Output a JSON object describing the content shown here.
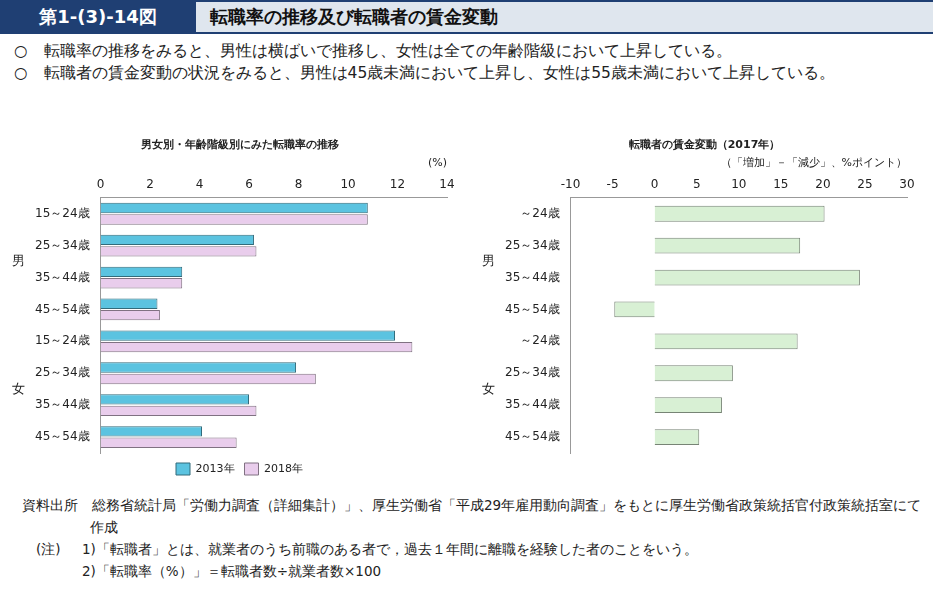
{
  "header": {
    "figure_no": "第1-(3)-14図",
    "title": "転職率の推移及び転職者の賃金変動"
  },
  "bullets": [
    "○　転職率の推移をみると、男性は横ばいで推移し、女性は全ての年齢階級において上昇している。",
    "○　転職者の賃金変動の状況をみると、男性は45歳未満において上昇し、女性は55歳未満において上昇している。"
  ],
  "chart_data": [
    {
      "type": "bar",
      "orientation": "horizontal",
      "title": "男女別・年齢階級別にみた転職率の推移",
      "x_label": "(%)",
      "categories": [
        "15～24歳",
        "25～34歳",
        "35～44歳",
        "45～54歳",
        "15～24歳",
        "25～34歳",
        "35～44歳",
        "45～54歳"
      ],
      "groups": [
        {
          "label": "男",
          "size": 4
        },
        {
          "label": "女",
          "size": 4
        }
      ],
      "series": [
        {
          "name": "2013年",
          "color": "#5bc3e0",
          "values": [
            10.8,
            6.2,
            3.3,
            2.3,
            11.9,
            7.9,
            6.0,
            4.1
          ]
        },
        {
          "name": "2018年",
          "color": "#e9cdec",
          "values": [
            10.8,
            6.3,
            3.3,
            2.4,
            12.6,
            8.7,
            6.3,
            5.5
          ]
        }
      ],
      "xlim": [
        0,
        14
      ],
      "xticks": [
        0,
        2,
        4,
        6,
        8,
        10,
        12,
        14
      ],
      "grid": false,
      "legend": "bottom"
    },
    {
      "type": "bar",
      "orientation": "horizontal",
      "title": "転職者の賃金変動（2017年）",
      "x_label": "（「増加」－「減少」、%ポイント）",
      "categories": [
        "～24歳",
        "25～34歳",
        "35～44歳",
        "45～54歳",
        "～24歳",
        "25～34歳",
        "35～44歳",
        "45～54歳"
      ],
      "groups": [
        {
          "label": "男",
          "size": 4
        },
        {
          "label": "女",
          "size": 4
        }
      ],
      "values": [
        20.2,
        17.3,
        24.4,
        -4.8,
        17.0,
        9.3,
        8.0,
        5.3
      ],
      "color": "#d8f0d4",
      "xlim": [
        -10,
        30
      ],
      "xticks": [
        -10,
        -5,
        0,
        5,
        10,
        15,
        20,
        25,
        30
      ],
      "grid": false
    }
  ],
  "source": "資料出所　総務省統計局「労働力調査（詳細集計）」、厚生労働省「平成29年雇用動向調査」をもとに厚生労働省政策統括官付政策統括室にて作成",
  "notes": {
    "label": "(注)",
    "items": [
      "1)「転職者」とは、就業者のうち前職のある者で，過去１年間に離職を経験した者のことをいう。",
      "2)「転職率（%）」＝転職者数÷就業者数×100"
    ]
  }
}
